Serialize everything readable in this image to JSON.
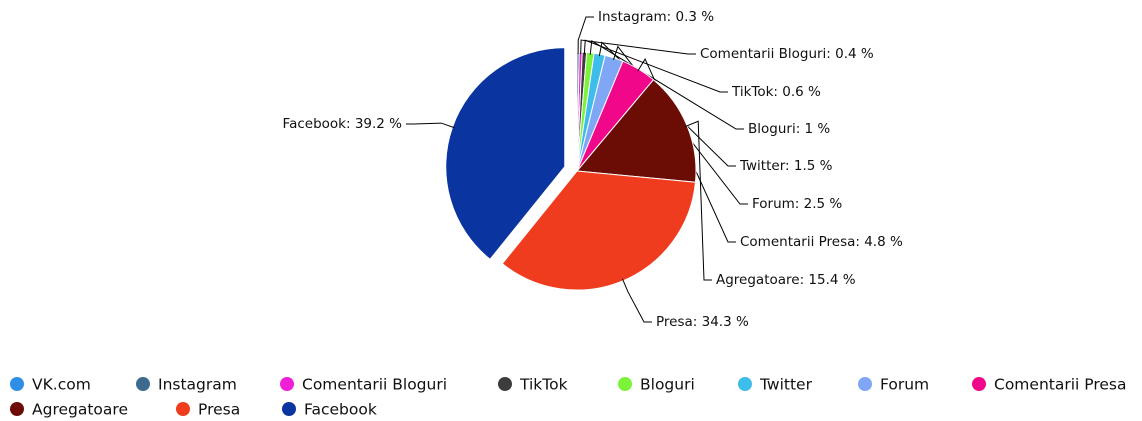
{
  "chart_data": {
    "type": "pie",
    "categories": [
      "VK.com",
      "Instagram",
      "Comentarii Bloguri",
      "TikTok",
      "Bloguri",
      "Twitter",
      "Forum",
      "Comentarii Presa",
      "Agregatoare",
      "Presa",
      "Facebook"
    ],
    "values": [
      0,
      0.3,
      0.4,
      0.6,
      1,
      1.5,
      2.5,
      4.8,
      15.4,
      34.3,
      39.2
    ],
    "value_labels": [
      null,
      "Instagram: 0.3 %",
      "Comentarii Bloguri: 0.4 %",
      "TikTok: 0.6 %",
      "Bloguri: 1 %",
      "Twitter: 1.5 %",
      "Forum: 2.5 %",
      "Comentarii Presa: 4.8 %",
      "Agregatoare: 15.4 %",
      "Presa: 34.3 %",
      "Facebook: 39.2 %"
    ],
    "colors": [
      "#2f8fe6",
      "#3d6a8f",
      "#f01ed6",
      "#3d3d3d",
      "#7cf23a",
      "#3ebdea",
      "#7fa7f5",
      "#f0078a",
      "#6b0c05",
      "#f03c1e",
      "#0a35a0"
    ],
    "exploded": "Facebook",
    "legend": "bottom"
  }
}
